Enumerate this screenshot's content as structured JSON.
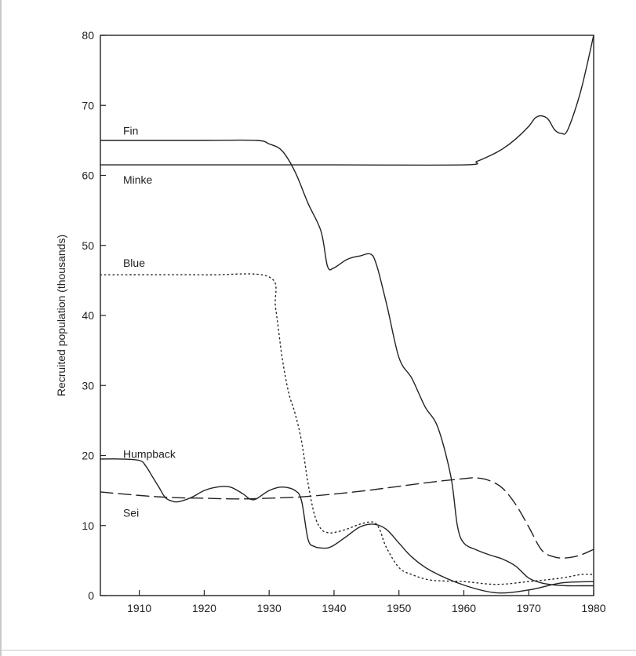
{
  "chart_data": {
    "type": "line",
    "title": "",
    "xlabel": "",
    "ylabel": "Recruited population (thousands)",
    "xlim": [
      1904,
      1980
    ],
    "ylim": [
      0,
      80
    ],
    "x_ticks": [
      1910,
      1920,
      1930,
      1940,
      1950,
      1960,
      1970,
      1980
    ],
    "y_ticks": [
      0,
      10,
      20,
      30,
      40,
      50,
      60,
      70,
      80
    ],
    "grid": false,
    "legend": "none",
    "series": [
      {
        "name": "Fin",
        "style": "solid",
        "x": [
          1904,
          1910,
          1920,
          1928,
          1930,
          1932,
          1934,
          1936,
          1938,
          1939,
          1940,
          1942,
          1944,
          1946,
          1948,
          1950,
          1952,
          1954,
          1956,
          1958,
          1959,
          1960,
          1962,
          1964,
          1966,
          1968,
          1970,
          1972,
          1974,
          1976,
          1978,
          1980
        ],
        "y": [
          65,
          65,
          65,
          65,
          64.5,
          63.5,
          60.5,
          56,
          52,
          47,
          46.8,
          48,
          48.5,
          48.5,
          42,
          34,
          31,
          27,
          24,
          17,
          10,
          7.5,
          6.5,
          5.8,
          5.2,
          4.2,
          2.5,
          1.8,
          1.5,
          1.4,
          1.4,
          1.4
        ]
      },
      {
        "name": "Minke",
        "style": "solid",
        "x": [
          1904,
          1920,
          1940,
          1960,
          1962,
          1964,
          1966,
          1968,
          1970,
          1971,
          1972,
          1973,
          1974,
          1975,
          1976,
          1978,
          1980
        ],
        "y": [
          61.5,
          61.5,
          61.5,
          61.5,
          62,
          62.8,
          63.8,
          65.2,
          67,
          68.2,
          68.5,
          68,
          66.5,
          66,
          66.5,
          72,
          80
        ]
      },
      {
        "name": "Blue",
        "style": "dotted",
        "x": [
          1904,
          1920,
          1930,
          1931,
          1932,
          1933,
          1934,
          1935,
          1936,
          1937,
          1938,
          1939,
          1940,
          1942,
          1944,
          1946,
          1947,
          1948,
          1950,
          1952,
          1955,
          1960,
          1965,
          1970,
          1975,
          1978,
          1980
        ],
        "y": [
          45.8,
          45.8,
          45.5,
          41,
          34,
          29,
          26,
          22,
          16,
          11.5,
          9.5,
          9,
          9,
          9.5,
          10.2,
          10.5,
          9.5,
          7,
          4,
          3,
          2.2,
          2,
          1.6,
          2,
          2.5,
          3,
          3
        ]
      },
      {
        "name": "Humpback",
        "style": "solid",
        "x": [
          1904,
          1907,
          1910,
          1911,
          1912,
          1913,
          1914,
          1915,
          1916,
          1918,
          1920,
          1922,
          1924,
          1926,
          1927,
          1928,
          1930,
          1932,
          1934,
          1935,
          1936,
          1937,
          1938,
          1939,
          1940,
          1942,
          1944,
          1946,
          1948,
          1950,
          1952,
          1955,
          1960,
          1965,
          1970,
          1975,
          1980
        ],
        "y": [
          19.5,
          19.5,
          19.3,
          18.5,
          17,
          15.5,
          14,
          13.5,
          13.4,
          14,
          15,
          15.5,
          15.5,
          14.5,
          13.8,
          13.8,
          15,
          15.5,
          15,
          13.5,
          8,
          7,
          6.8,
          6.8,
          7.2,
          8.5,
          9.8,
          10.2,
          9.5,
          7.5,
          5.5,
          3.5,
          1.5,
          0.4,
          0.8,
          1.8,
          2
        ]
      },
      {
        "name": "Sei",
        "style": "dashed",
        "x": [
          1904,
          1910,
          1915,
          1920,
          1925,
          1930,
          1935,
          1940,
          1945,
          1950,
          1955,
          1960,
          1962,
          1964,
          1966,
          1968,
          1970,
          1972,
          1974,
          1976,
          1978,
          1980
        ],
        "y": [
          14.8,
          14.3,
          14,
          13.9,
          13.8,
          13.9,
          14.1,
          14.5,
          15,
          15.6,
          16.2,
          16.7,
          16.8,
          16.4,
          15.3,
          13,
          9.8,
          6.5,
          5.5,
          5.4,
          5.8,
          6.6
        ]
      }
    ],
    "labels": [
      {
        "series": "Fin",
        "text": "Fin",
        "x": 1907.5,
        "y": 66.4
      },
      {
        "series": "Minke",
        "text": "Minke",
        "x": 1907.5,
        "y": 59.4
      },
      {
        "series": "Blue",
        "text": "Blue",
        "x": 1907.5,
        "y": 47.5
      },
      {
        "series": "Humpback",
        "text": "Humpback",
        "x": 1907.5,
        "y": 20.2
      },
      {
        "series": "Sei",
        "text": "Sei",
        "x": 1907.5,
        "y": 11.8
      }
    ]
  }
}
